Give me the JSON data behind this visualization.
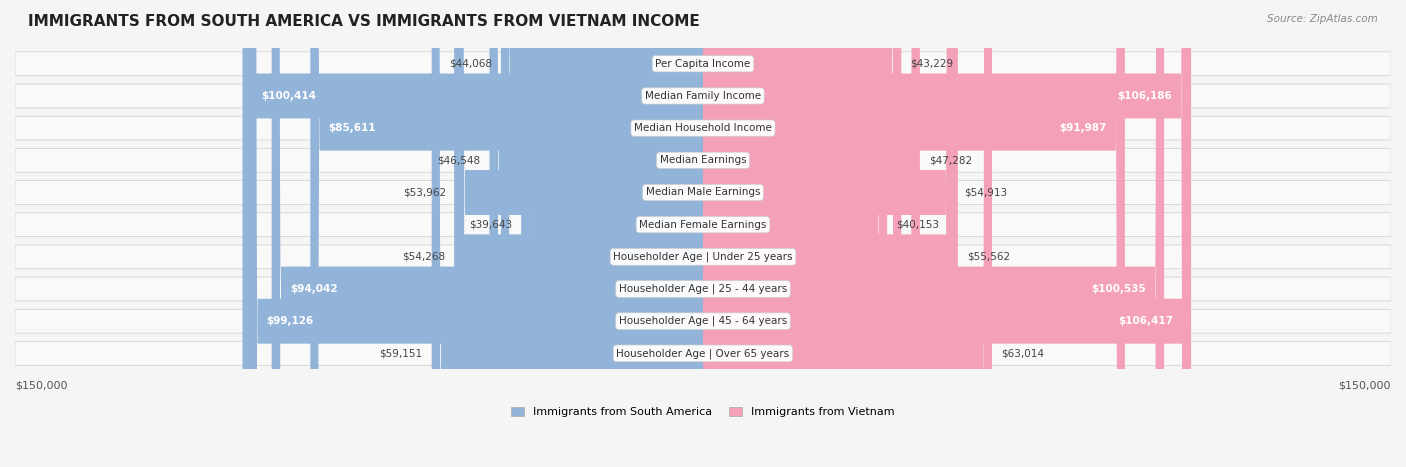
{
  "title": "IMMIGRANTS FROM SOUTH AMERICA VS IMMIGRANTS FROM VIETNAM INCOME",
  "source": "Source: ZipAtlas.com",
  "categories": [
    "Per Capita Income",
    "Median Family Income",
    "Median Household Income",
    "Median Earnings",
    "Median Male Earnings",
    "Median Female Earnings",
    "Householder Age | Under 25 years",
    "Householder Age | 25 - 44 years",
    "Householder Age | 45 - 64 years",
    "Householder Age | Over 65 years"
  ],
  "south_america_values": [
    44068,
    100414,
    85611,
    46548,
    53962,
    39643,
    54268,
    94042,
    99126,
    59151
  ],
  "vietnam_values": [
    43229,
    106186,
    91987,
    47282,
    54913,
    40153,
    55562,
    100535,
    106417,
    63014
  ],
  "south_america_labels": [
    "$44,068",
    "$100,414",
    "$85,611",
    "$46,548",
    "$53,962",
    "$39,643",
    "$54,268",
    "$94,042",
    "$99,126",
    "$59,151"
  ],
  "vietnam_labels": [
    "$43,229",
    "$106,186",
    "$91,987",
    "$47,282",
    "$54,913",
    "$40,153",
    "$55,562",
    "$100,535",
    "$106,417",
    "$63,014"
  ],
  "south_america_color": "#92b4d9",
  "vietnam_color": "#f4a0b8",
  "south_america_color_dark": "#6a9ec8",
  "vietnam_color_dark": "#f07898",
  "max_value": 150000,
  "background_color": "#f5f5f5",
  "row_bg_color": "#ffffff",
  "label_inside_threshold": 70000,
  "legend_sa": "Immigrants from South America",
  "legend_vn": "Immigrants from Vietnam"
}
